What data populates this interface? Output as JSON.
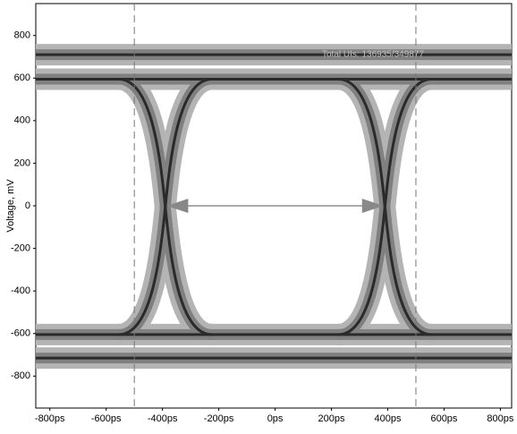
{
  "chart_data": {
    "type": "eye",
    "ylabel": "Voltage, mV",
    "annotation": "Total UIs: 136935/349877",
    "xlim": [
      -850,
      840
    ],
    "ylim": [
      -950,
      950
    ],
    "xticks": [
      {
        "value": -800,
        "label": "-800ps"
      },
      {
        "value": -600,
        "label": "-600ps"
      },
      {
        "value": -400,
        "label": "-400ps"
      },
      {
        "value": -200,
        "label": "-200ps"
      },
      {
        "value": 0,
        "label": "0ps"
      },
      {
        "value": 200,
        "label": "200ps"
      },
      {
        "value": 400,
        "label": "400ps"
      },
      {
        "value": 600,
        "label": "600ps"
      },
      {
        "value": 800,
        "label": "800ps"
      }
    ],
    "yticks": [
      800,
      600,
      400,
      200,
      0,
      -200,
      -400,
      -600,
      -800
    ],
    "levels": {
      "high": [
        710,
        595
      ],
      "low": [
        -605,
        -715
      ]
    },
    "crossings": [
      -390,
      390
    ],
    "markers": [
      -500,
      500
    ],
    "arrow": {
      "x": [
        -385,
        385
      ],
      "y": 0
    }
  }
}
